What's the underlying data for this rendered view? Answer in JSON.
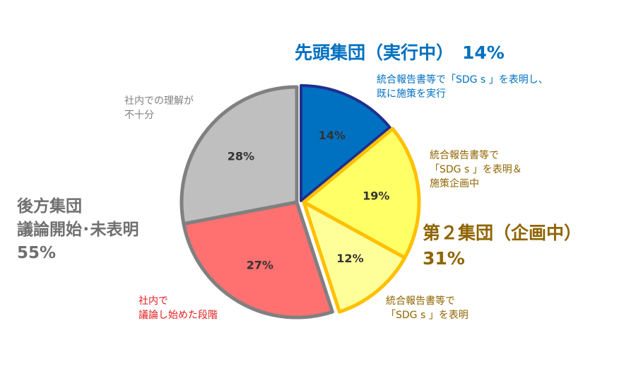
{
  "chart_data": {
    "type": "pie",
    "slices": [
      {
        "value": 14,
        "label": "14%",
        "color": "#0070c0",
        "stroke": "#1f2f8f",
        "description": "統合報告書等で「SDG s 」を表明し、\n既に施策を実行"
      },
      {
        "value": 19,
        "label": "19%",
        "color": "#ffff66",
        "stroke": "#ffc000",
        "description": "統合報告書等で\n「SDG s 」を表明＆\n施策企画中"
      },
      {
        "value": 12,
        "label": "12%",
        "color": "#ffff99",
        "stroke": "#ffc000",
        "description": "統合報告書等で\n「SDG s 」を表明"
      },
      {
        "value": 27,
        "label": "27%",
        "color": "#ff7070",
        "stroke": "#808080",
        "description": "社内で\n議論し始めた段階"
      },
      {
        "value": 28,
        "label": "28%",
        "color": "#bfbfbf",
        "stroke": "#808080",
        "description": "社内での理解が\n不十分"
      }
    ],
    "groups": [
      {
        "name": "先頭集団（実行中）",
        "value_label": "14%",
        "color": "#0070c0"
      },
      {
        "name": "第２集団（企画中）",
        "value_label": "31%",
        "color": "#8f6400"
      },
      {
        "name": "後方集団\n議論開始･未表明",
        "value_label": "55%",
        "color": "#6f6f6f"
      }
    ]
  }
}
